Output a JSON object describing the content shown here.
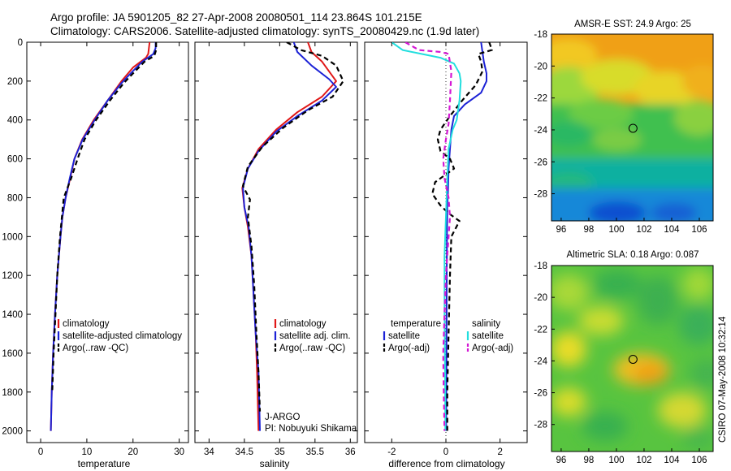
{
  "header": {
    "line1": "Argo profile: JA 5901205_82 27-Apr-2008 20080501_114 23.864S 101.215E",
    "line2": "Climatology: CARS2006. Satellite-adjusted climatology: synTS_20080429.nc (1.9d later)"
  },
  "side_label": "CSIRO 07-May-2008 10:32:14",
  "colors": {
    "climatology": "#e01818",
    "satellite": "#1c22d6",
    "argo": "#000000",
    "sal_sat": "#22dede",
    "sal_argo": "#d418d4"
  },
  "chart_data": [
    {
      "type": "line",
      "id": "temperature",
      "xlabel": "temperature",
      "xlim": [
        -3,
        32
      ],
      "ylim": [
        2060,
        0
      ],
      "xticks": [
        "0",
        "10",
        "20",
        "30"
      ],
      "xtick_values": [
        0,
        10,
        20,
        30
      ],
      "yticks": [
        "0",
        "200",
        "400",
        "600",
        "800",
        "1000",
        "1200",
        "1400",
        "1600",
        "1800",
        "2000"
      ],
      "ytick_values": [
        0,
        200,
        400,
        600,
        800,
        1000,
        1200,
        1400,
        1600,
        1800,
        2000
      ],
      "legend": [
        "climatology",
        "satellite-adjusted climatology",
        "Argo(..raw -QC)"
      ],
      "series": [
        {
          "name": "climatology",
          "color": "#e01818",
          "style": "solid",
          "points": [
            [
              23.6,
              0
            ],
            [
              23.3,
              60
            ],
            [
              22.8,
              80
            ],
            [
              20,
              130
            ],
            [
              17.5,
              200
            ],
            [
              14.5,
              300
            ],
            [
              11.5,
              400
            ],
            [
              9,
              500
            ],
            [
              7.3,
              600
            ],
            [
              6.4,
              700
            ],
            [
              5.4,
              800
            ],
            [
              4.7,
              900
            ],
            [
              4.3,
              1000
            ],
            [
              3.6,
              1200
            ],
            [
              3.1,
              1400
            ],
            [
              2.7,
              1600
            ],
            [
              2.4,
              1800
            ],
            [
              2.2,
              2000
            ]
          ]
        },
        {
          "name": "satellite-adjusted climatology",
          "color": "#1c22d6",
          "style": "solid",
          "points": [
            [
              24.9,
              0
            ],
            [
              24.9,
              30
            ],
            [
              24.4,
              60
            ],
            [
              22,
              100
            ],
            [
              19.5,
              160
            ],
            [
              17.5,
              210
            ],
            [
              14.5,
              300
            ],
            [
              11.7,
              400
            ],
            [
              9.1,
              500
            ],
            [
              7.3,
              600
            ],
            [
              6.3,
              700
            ],
            [
              5.4,
              800
            ],
            [
              4.7,
              900
            ],
            [
              4.3,
              1000
            ],
            [
              3.6,
              1200
            ],
            [
              3.1,
              1400
            ],
            [
              2.7,
              1600
            ],
            [
              2.4,
              1800
            ],
            [
              2.2,
              2000
            ]
          ]
        },
        {
          "name": "Argo(..raw -QC)",
          "color": "#000000",
          "style": "dashed",
          "points": [
            [
              25,
              0
            ],
            [
              25,
              40
            ],
            [
              24.6,
              70
            ],
            [
              22.5,
              100
            ],
            [
              20,
              160
            ],
            [
              18,
              210
            ],
            [
              15,
              300
            ],
            [
              12,
              400
            ],
            [
              9.5,
              500
            ],
            [
              8,
              600
            ],
            [
              6.6,
              700
            ],
            [
              5,
              800
            ],
            [
              4.6,
              900
            ],
            [
              4.2,
              1000
            ],
            [
              3.6,
              1200
            ],
            [
              3.2,
              1400
            ],
            [
              2.8,
              1600
            ],
            [
              2.5,
              1800
            ]
          ]
        }
      ]
    },
    {
      "type": "line",
      "id": "salinity",
      "xlabel": "salinity",
      "xlim": [
        33.8,
        36.1
      ],
      "ylim": [
        2060,
        0
      ],
      "xticks": [
        "34",
        "34.5",
        "35",
        "35.5",
        "36"
      ],
      "xtick_values": [
        34,
        34.5,
        35,
        35.5,
        36
      ],
      "legend": [
        "climatology",
        "satellite adj. clim.",
        "Argo(..raw -QC)"
      ],
      "annotation": [
        "J-ARGO",
        "PI: Nobuyuki Shikama"
      ],
      "series": [
        {
          "name": "climatology",
          "color": "#e01818",
          "style": "solid",
          "points": [
            [
              35.4,
              0
            ],
            [
              35.45,
              50
            ],
            [
              35.6,
              100
            ],
            [
              35.8,
              200
            ],
            [
              35.6,
              280
            ],
            [
              35.25,
              360
            ],
            [
              34.95,
              450
            ],
            [
              34.7,
              550
            ],
            [
              34.55,
              650
            ],
            [
              34.47,
              750
            ],
            [
              34.5,
              850
            ],
            [
              34.55,
              950
            ],
            [
              34.6,
              1100
            ],
            [
              34.63,
              1300
            ],
            [
              34.66,
              1500
            ],
            [
              34.68,
              1700
            ],
            [
              34.7,
              2000
            ]
          ]
        },
        {
          "name": "satellite adj. clim.",
          "color": "#1c22d6",
          "style": "solid",
          "points": [
            [
              35.2,
              0
            ],
            [
              35.25,
              50
            ],
            [
              35.45,
              120
            ],
            [
              35.7,
              190
            ],
            [
              35.8,
              230
            ],
            [
              35.6,
              300
            ],
            [
              35.25,
              380
            ],
            [
              34.95,
              460
            ],
            [
              34.7,
              560
            ],
            [
              34.55,
              650
            ],
            [
              34.48,
              750
            ],
            [
              34.5,
              850
            ],
            [
              34.56,
              950
            ],
            [
              34.6,
              1100
            ],
            [
              34.63,
              1300
            ],
            [
              34.66,
              1500
            ],
            [
              34.7,
              1700
            ],
            [
              34.72,
              2000
            ]
          ]
        },
        {
          "name": "Argo(..raw -QC)",
          "color": "#000000",
          "style": "dashed",
          "points": [
            [
              35.1,
              0
            ],
            [
              35.3,
              40
            ],
            [
              35.6,
              70
            ],
            [
              35.8,
              120
            ],
            [
              35.9,
              200
            ],
            [
              35.75,
              280
            ],
            [
              35.4,
              350
            ],
            [
              35.05,
              440
            ],
            [
              34.75,
              540
            ],
            [
              34.55,
              640
            ],
            [
              34.48,
              740
            ],
            [
              34.58,
              810
            ],
            [
              34.55,
              900
            ],
            [
              34.6,
              1050
            ],
            [
              34.64,
              1250
            ],
            [
              34.67,
              1500
            ],
            [
              34.7,
              1700
            ],
            [
              34.72,
              1900
            ]
          ]
        }
      ]
    },
    {
      "type": "line",
      "id": "difference",
      "xlabel": "difference from climatology",
      "xlim": [
        -3,
        3
      ],
      "ylim": [
        2060,
        0
      ],
      "xticks": [
        "-2",
        "0",
        "2"
      ],
      "xtick_values": [
        -2,
        0,
        2
      ],
      "legend_left_title": "temperature",
      "legend_right_title": "salinity",
      "legend_left": [
        "satellite",
        "Argo(-adj)"
      ],
      "legend_right": [
        "satellite",
        "Argo(-adj)"
      ],
      "series": [
        {
          "name": "temperature satellite",
          "color": "#1c22d6",
          "style": "solid",
          "points": [
            [
              1.3,
              0
            ],
            [
              1.35,
              50
            ],
            [
              1.4,
              100
            ],
            [
              1.5,
              160
            ],
            [
              1.5,
              200
            ],
            [
              1.3,
              260
            ],
            [
              0.7,
              320
            ],
            [
              0.3,
              380
            ],
            [
              0.2,
              450
            ],
            [
              0.15,
              550
            ],
            [
              0.1,
              650
            ],
            [
              0.08,
              750
            ],
            [
              0.05,
              850
            ],
            [
              0.04,
              1000
            ],
            [
              0.03,
              1200
            ],
            [
              0.02,
              1600
            ],
            [
              0.01,
              2000
            ]
          ]
        },
        {
          "name": "temperature Argo(-adj)",
          "color": "#000000",
          "style": "dashed",
          "points": [
            [
              1.6,
              0
            ],
            [
              1.7,
              40
            ],
            [
              1.2,
              60
            ],
            [
              1.3,
              100
            ],
            [
              1.35,
              150
            ],
            [
              1.1,
              220
            ],
            [
              0.6,
              300
            ],
            [
              0.15,
              380
            ],
            [
              -0.2,
              450
            ],
            [
              -0.3,
              500
            ],
            [
              -0.2,
              560
            ],
            [
              0.15,
              600
            ],
            [
              0.3,
              650
            ],
            [
              -0.4,
              720
            ],
            [
              -0.5,
              780
            ],
            [
              -0.2,
              840
            ],
            [
              0.1,
              880
            ],
            [
              0.5,
              920
            ],
            [
              0.2,
              1000
            ],
            [
              0.15,
              1200
            ],
            [
              0.1,
              1500
            ],
            [
              0.05,
              1800
            ],
            [
              0.05,
              2000
            ]
          ]
        },
        {
          "name": "salinity satellite",
          "color": "#22dede",
          "style": "solid",
          "points": [
            [
              -2,
              0
            ],
            [
              -1.6,
              40
            ],
            [
              -0.9,
              60
            ],
            [
              -0.2,
              80
            ],
            [
              0.3,
              110
            ],
            [
              0.5,
              160
            ],
            [
              0.55,
              200
            ],
            [
              0.5,
              300
            ],
            [
              0.4,
              400
            ],
            [
              0.25,
              450
            ],
            [
              0.1,
              550
            ],
            [
              0.05,
              700
            ],
            [
              0,
              900
            ],
            [
              -0.05,
              1100
            ],
            [
              -0.05,
              1400
            ],
            [
              -0.03,
              1700
            ],
            [
              -0.02,
              2000
            ]
          ]
        },
        {
          "name": "salinity Argo(-adj)",
          "color": "#d418d4",
          "style": "dashed",
          "points": [
            [
              -1.5,
              0
            ],
            [
              -1,
              40
            ],
            [
              -0.2,
              50
            ],
            [
              0.1,
              60
            ],
            [
              0.2,
              150
            ],
            [
              0.15,
              300
            ],
            [
              0.1,
              420
            ],
            [
              0,
              500
            ],
            [
              -0.1,
              600
            ],
            [
              -0.05,
              700
            ],
            [
              0.1,
              800
            ],
            [
              0.15,
              900
            ],
            [
              0.1,
              1000
            ],
            [
              0,
              1200
            ],
            [
              -0.05,
              1400
            ],
            [
              -0.1,
              1600
            ],
            [
              -0.08,
              1800
            ],
            [
              -0.05,
              2000
            ]
          ]
        }
      ]
    },
    {
      "type": "heatmap",
      "id": "sst-map",
      "title": "AMSR-E SST: 24.9 Argo: 25",
      "xlim": [
        95.3,
        107
      ],
      "ylim": [
        -29.7,
        -18
      ],
      "xticks": [
        "96",
        "98",
        "100",
        "102",
        "104",
        "106"
      ],
      "xtick_values": [
        96,
        98,
        100,
        102,
        104,
        106
      ],
      "yticks": [
        "-18",
        "-20",
        "-22",
        "-24",
        "-26",
        "-28"
      ],
      "ytick_values": [
        -18,
        -20,
        -22,
        -24,
        -26,
        -28
      ],
      "marker": [
        101.2,
        -23.9
      ]
    },
    {
      "type": "heatmap",
      "id": "sla-map",
      "title": "Altimetric SLA: 0.18 Argo: 0.087",
      "xlim": [
        95.3,
        107
      ],
      "ylim": [
        -29.7,
        -18
      ],
      "xticks": [
        "96",
        "98",
        "100",
        "102",
        "104",
        "106"
      ],
      "xtick_values": [
        96,
        98,
        100,
        102,
        104,
        106
      ],
      "yticks": [
        "-18",
        "-20",
        "-22",
        "-24",
        "-26",
        "-28"
      ],
      "ytick_values": [
        -18,
        -20,
        -22,
        -24,
        -26,
        -28
      ],
      "marker": [
        101.2,
        -23.9
      ]
    }
  ]
}
